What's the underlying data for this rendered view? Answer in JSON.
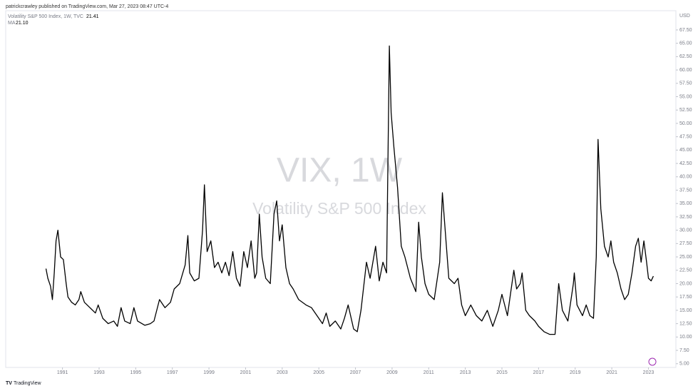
{
  "header": "patrickcrawley published on TradingView.com, Mar 27, 2023 08:47 UTC-4",
  "brand": "TradingView",
  "chart_data": {
    "type": "line",
    "legend": {
      "label": "Volatility S&P 500 Index, 1W, TVC",
      "value": "21.41"
    },
    "ma": {
      "label": "MA",
      "value": "21.10"
    },
    "watermark": [
      "VIX, 1W",
      "Volatility S&P 500 Index"
    ],
    "y_unit": "USD",
    "x": [
      1990.1,
      1990.2,
      1990.35,
      1990.45,
      1990.55,
      1990.65,
      1990.75,
      1990.9,
      1991.05,
      1991.2,
      1991.3,
      1991.5,
      1991.7,
      1991.9,
      1992.0,
      1992.2,
      1992.5,
      1992.8,
      1992.95,
      1993.2,
      1993.5,
      1993.8,
      1994.0,
      1994.2,
      1994.4,
      1994.7,
      1994.9,
      1995.1,
      1995.5,
      1995.8,
      1996.0,
      1996.3,
      1996.6,
      1996.9,
      1997.1,
      1997.4,
      1997.7,
      1997.85,
      1997.95,
      1998.2,
      1998.45,
      1998.65,
      1998.75,
      1998.9,
      1999.1,
      1999.3,
      1999.5,
      1999.7,
      1999.9,
      2000.1,
      2000.3,
      2000.5,
      2000.7,
      2000.9,
      2001.1,
      2001.3,
      2001.5,
      2001.6,
      2001.75,
      2001.9,
      2002.1,
      2002.35,
      2002.55,
      2002.7,
      2002.85,
      2003.0,
      2003.2,
      2003.4,
      2003.6,
      2003.9,
      2004.3,
      2004.6,
      2004.9,
      2005.2,
      2005.4,
      2005.6,
      2005.9,
      2006.2,
      2006.4,
      2006.6,
      2006.9,
      2007.1,
      2007.3,
      2007.6,
      2007.8,
      2007.9,
      2008.1,
      2008.3,
      2008.5,
      2008.7,
      2008.85,
      2008.95,
      2009.1,
      2009.3,
      2009.5,
      2009.7,
      2010.0,
      2010.3,
      2010.45,
      2010.6,
      2010.8,
      2011.0,
      2011.3,
      2011.6,
      2011.75,
      2011.9,
      2012.1,
      2012.4,
      2012.6,
      2012.8,
      2013.0,
      2013.3,
      2013.6,
      2013.9,
      2014.2,
      2014.5,
      2014.8,
      2015.0,
      2015.3,
      2015.65,
      2015.8,
      2016.0,
      2016.1,
      2016.3,
      2016.5,
      2016.8,
      2017.0,
      2017.3,
      2017.6,
      2017.9,
      2018.1,
      2018.3,
      2018.6,
      2018.9,
      2018.95,
      2019.1,
      2019.4,
      2019.6,
      2019.8,
      2020.0,
      2020.15,
      2020.25,
      2020.4,
      2020.6,
      2020.8,
      2020.95,
      2021.1,
      2021.3,
      2021.5,
      2021.7,
      2021.9,
      2022.1,
      2022.3,
      2022.45,
      2022.6,
      2022.75,
      2022.9,
      2023.0,
      2023.15,
      2023.27
    ],
    "series": [
      {
        "name": "Volatility S&P 500 Index",
        "color": "#000000",
        "values": [
          22.8,
          21.0,
          19.5,
          17.0,
          22,
          28,
          30,
          25,
          24.5,
          20,
          17.5,
          16.5,
          16,
          17,
          18.5,
          16.5,
          15.5,
          14.5,
          16,
          13.5,
          12.5,
          13,
          12,
          15.5,
          13,
          12.5,
          15.5,
          13,
          12.2,
          12.5,
          13,
          17,
          15.5,
          16.5,
          19,
          20,
          23.5,
          29,
          22,
          20.5,
          21,
          30,
          38.5,
          26,
          28,
          23,
          24,
          22,
          24,
          21.5,
          26,
          21,
          19.5,
          26,
          23,
          28,
          21,
          22,
          33,
          25,
          21,
          20,
          33,
          35.5,
          28,
          31,
          23,
          20,
          19,
          17,
          16,
          15.5,
          14,
          12.5,
          14.5,
          12,
          13,
          11.5,
          13.5,
          16,
          11.5,
          11,
          15,
          24,
          21,
          23,
          27,
          20.5,
          24,
          22,
          64.5,
          52,
          45.5,
          38,
          27,
          25,
          21,
          18.5,
          31.5,
          25,
          20,
          18,
          17,
          24,
          37,
          30,
          21,
          20,
          21,
          16,
          14,
          16,
          14,
          13,
          15,
          12,
          15,
          18,
          14,
          22.5,
          19,
          20,
          22,
          15,
          14,
          13,
          12,
          11,
          10.5,
          10.5,
          20,
          15,
          13,
          20,
          22,
          16,
          14,
          16,
          14,
          13.5,
          25,
          47,
          34,
          27,
          25,
          28,
          24,
          22,
          19,
          17,
          18,
          22,
          27,
          28.5,
          24,
          28,
          24,
          21,
          20.5,
          21.4
        ]
      }
    ],
    "xlim": [
      1987.9,
      2024.5
    ],
    "xticks": [
      1991,
      1993,
      1995,
      1997,
      1999,
      2001,
      2003,
      2005,
      2007,
      2009,
      2011,
      2013,
      2015,
      2017,
      2019,
      2021,
      2023
    ],
    "ylim": [
      4.3,
      71.1
    ],
    "yticks": [
      {
        "value": 5,
        "label": "5.00"
      },
      {
        "value": 7.5,
        "label": "7.50"
      },
      {
        "value": 10,
        "label": "10.00"
      },
      {
        "value": 12.5,
        "label": "12.50"
      },
      {
        "value": 15,
        "label": "15.00"
      },
      {
        "value": 17.5,
        "label": "17.50"
      },
      {
        "value": 20,
        "label": "20.00"
      },
      {
        "value": 22.5,
        "label": "22.50"
      },
      {
        "value": 25,
        "label": "25.00"
      },
      {
        "value": 27.5,
        "label": "27.50"
      },
      {
        "value": 30,
        "label": "30.00"
      },
      {
        "value": 32.5,
        "label": "32.50"
      },
      {
        "value": 35,
        "label": "35.00"
      },
      {
        "value": 37.5,
        "label": "37.50"
      },
      {
        "value": 40,
        "label": "40.00"
      },
      {
        "value": 42.5,
        "label": "42.50"
      },
      {
        "value": 45,
        "label": "45.00"
      },
      {
        "value": 47.5,
        "label": "47.50"
      },
      {
        "value": 50,
        "label": "50.00"
      },
      {
        "value": 52.5,
        "label": "52.50"
      },
      {
        "value": 55,
        "label": "55.00"
      },
      {
        "value": 57.5,
        "label": "57.50"
      },
      {
        "value": 60,
        "label": "60.00"
      },
      {
        "value": 62.5,
        "label": "62.50"
      },
      {
        "value": 65,
        "label": "65.00"
      },
      {
        "value": 67.5,
        "label": "67.50"
      }
    ]
  }
}
